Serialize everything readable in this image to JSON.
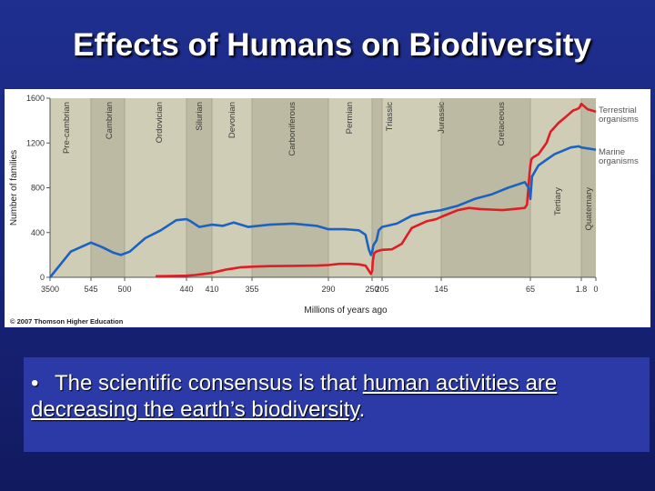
{
  "slide": {
    "title": "Effects of Humans on Biodiversity",
    "bullet_symbol": "•",
    "bullet_pre": "The scientific consensus is that ",
    "bullet_underlined": "human activities are decreasing the earth’s biodiversity",
    "bullet_post": "."
  },
  "colors": {
    "terrestrial": "#e01c24",
    "marine": "#1c62c0",
    "plot_bg": "#cfcdb6",
    "band": "#bcbaa2",
    "label_text": "#3b3b3b"
  },
  "chart_data": {
    "type": "line",
    "xlabel": "Millions of years ago",
    "ylabel": "Number of families",
    "ylim": [
      0,
      1600
    ],
    "yticks": [
      0,
      400,
      800,
      1200,
      1600
    ],
    "x_reversed": true,
    "x_tick_labels": [
      "3500",
      "545",
      "500",
      "440",
      "410",
      "355",
      "290",
      "250",
      "205",
      "145",
      "65",
      "1.8",
      "0"
    ],
    "grid": false,
    "legend": "right-inline",
    "periods": [
      "Pre-cambrian",
      "Cambrian",
      "Ordovician",
      "Silurian",
      "Devonian",
      "Carboniferous",
      "Permian",
      "Triassic",
      "Jurassic",
      "Cretaceous",
      "Tertiary",
      "Quaternary"
    ],
    "copyright": "© 2007 Thomson Higher Education",
    "series": [
      {
        "name": "Terrestrial organisms",
        "x": [
          470,
          455,
          440,
          430,
          420,
          410,
          400,
          390,
          380,
          370,
          355,
          340,
          320,
          300,
          290,
          280,
          270,
          262,
          256,
          253,
          251,
          249,
          247,
          243,
          240,
          235,
          225,
          215,
          205,
          195,
          185,
          175,
          160,
          150,
          145,
          130,
          120,
          110,
          100,
          90,
          80,
          70,
          68,
          66,
          65,
          64,
          62,
          55,
          45,
          40,
          30,
          20,
          12,
          8,
          5,
          3,
          1.8,
          1,
          0
        ],
        "y": [
          10,
          12,
          15,
          20,
          30,
          40,
          55,
          70,
          80,
          90,
          95,
          100,
          102,
          105,
          110,
          120,
          120,
          115,
          105,
          60,
          30,
          60,
          140,
          190,
          215,
          225,
          235,
          240,
          245,
          250,
          300,
          440,
          500,
          520,
          540,
          600,
          620,
          610,
          605,
          600,
          610,
          620,
          650,
          900,
          1000,
          1050,
          1070,
          1100,
          1200,
          1300,
          1380,
          1440,
          1490,
          1500,
          1510,
          1530,
          1550,
          1500,
          1480
        ]
      },
      {
        "name": "Marine organisms",
        "x": [
          3500,
          2000,
          545,
          530,
          515,
          505,
          495,
          480,
          465,
          450,
          440,
          435,
          425,
          410,
          395,
          380,
          360,
          340,
          320,
          300,
          290,
          275,
          262,
          256,
          253,
          251,
          249,
          245,
          240,
          230,
          220,
          205,
          190,
          175,
          160,
          145,
          130,
          115,
          100,
          85,
          70,
          66,
          65,
          63,
          55,
          45,
          35,
          25,
          15,
          5,
          1.8,
          0
        ],
        "y": [
          0,
          230,
          310,
          270,
          220,
          200,
          230,
          350,
          420,
          510,
          520,
          500,
          450,
          470,
          460,
          490,
          450,
          470,
          480,
          460,
          430,
          430,
          420,
          380,
          250,
          200,
          230,
          280,
          300,
          330,
          420,
          450,
          480,
          550,
          580,
          600,
          640,
          700,
          740,
          800,
          850,
          790,
          700,
          900,
          1000,
          1050,
          1100,
          1130,
          1160,
          1170,
          1160,
          1140
        ]
      }
    ]
  }
}
